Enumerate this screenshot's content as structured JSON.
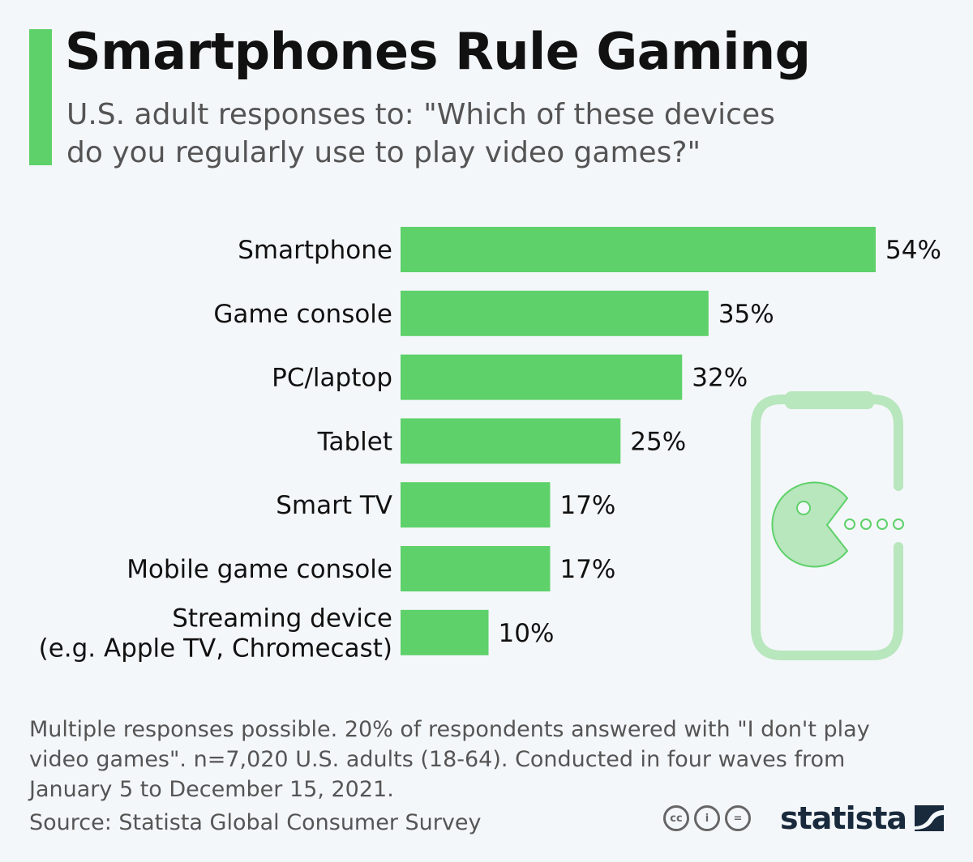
{
  "header": {
    "title": "Smartphones Rule Gaming",
    "subtitle": "U.S. adult responses to: \"Which of these devices do you regularly use to play video games?\"",
    "accent_color": "#5ed16a"
  },
  "chart_data": {
    "type": "bar",
    "orientation": "horizontal",
    "categories": [
      "Smartphone",
      "Game console",
      "PC/laptop",
      "Tablet",
      "Smart TV",
      "Mobile game console",
      "Streaming device (e.g. Apple TV, Chromecast)"
    ],
    "category_lines": [
      [
        "Smartphone"
      ],
      [
        "Game console"
      ],
      [
        "PC/laptop"
      ],
      [
        "Tablet"
      ],
      [
        "Smart TV"
      ],
      [
        "Mobile game console"
      ],
      [
        "Streaming device",
        "(e.g. Apple TV, Chromecast)"
      ]
    ],
    "values": [
      54,
      35,
      32,
      25,
      17,
      17,
      10
    ],
    "value_labels": [
      "54%",
      "35%",
      "32%",
      "25%",
      "17%",
      "17%",
      "10%"
    ],
    "unit": "%",
    "bar_color": "#5ed16a",
    "xlim": [
      0,
      54
    ],
    "grid": false,
    "legend": "none"
  },
  "illustration": {
    "icon": "smartphone-pacman-icon",
    "color": "#b8e6bd"
  },
  "footer": {
    "note": "Multiple responses possible. 20% of respondents answered with \"I don't play video games\". n=7,020 U.S. adults (18-64). Conducted in four waves from January 5 to December 15, 2021.",
    "source": "Source: Statista Global Consumer Survey",
    "license_icons": [
      "cc-icon",
      "by-icon",
      "nd-icon"
    ],
    "license_text": [
      "cc",
      "i",
      "="
    ],
    "brand": "statista",
    "brand_color": "#1a2a3d"
  }
}
